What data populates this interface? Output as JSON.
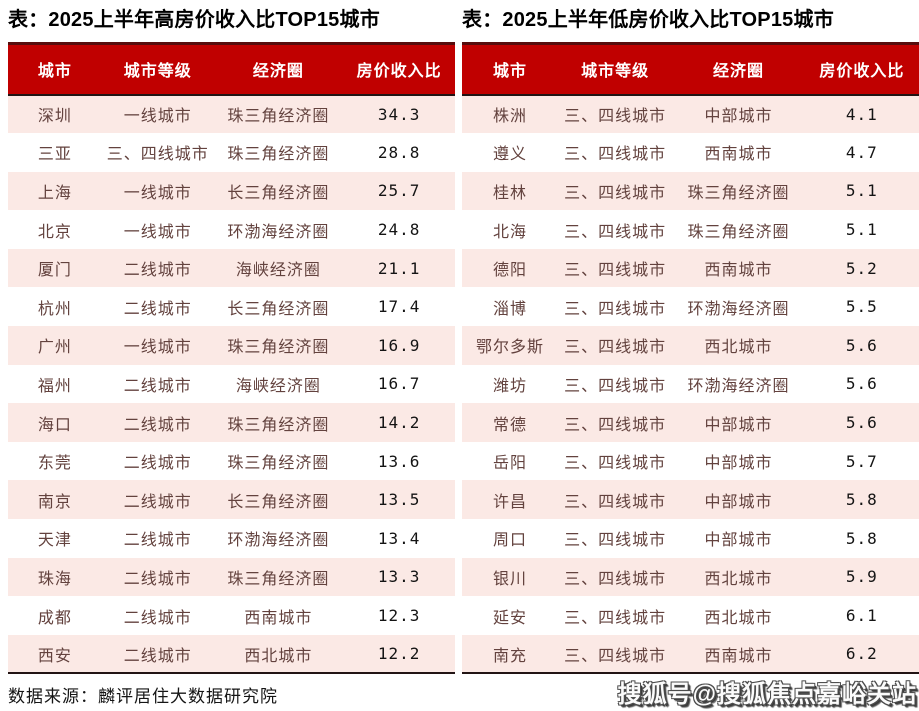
{
  "colors": {
    "header_bg": "#c00000",
    "header_border": "#570d0d",
    "dark_line": "#221414",
    "row_alt_bg": "#fbe9e5",
    "header_text": "#ffffff",
    "cell_text": "#63423e",
    "value_text": "#141414"
  },
  "chart_data": [
    {
      "type": "table",
      "title": "表：2025上半年高房价收入比TOP15城市",
      "columns": [
        "城市",
        "城市等级",
        "经济圈",
        "房价收入比"
      ],
      "rows": [
        [
          "深圳",
          "一线城市",
          "珠三角经济圈",
          "34.3"
        ],
        [
          "三亚",
          "三、四线城市",
          "珠三角经济圈",
          "28.8"
        ],
        [
          "上海",
          "一线城市",
          "长三角经济圈",
          "25.7"
        ],
        [
          "北京",
          "一线城市",
          "环渤海经济圈",
          "24.8"
        ],
        [
          "厦门",
          "二线城市",
          "海峡经济圈",
          "21.1"
        ],
        [
          "杭州",
          "二线城市",
          "长三角经济圈",
          "17.4"
        ],
        [
          "广州",
          "一线城市",
          "珠三角经济圈",
          "16.9"
        ],
        [
          "福州",
          "二线城市",
          "海峡经济圈",
          "16.7"
        ],
        [
          "海口",
          "二线城市",
          "珠三角经济圈",
          "14.2"
        ],
        [
          "东莞",
          "二线城市",
          "珠三角经济圈",
          "13.6"
        ],
        [
          "南京",
          "二线城市",
          "长三角经济圈",
          "13.5"
        ],
        [
          "天津",
          "二线城市",
          "环渤海经济圈",
          "13.4"
        ],
        [
          "珠海",
          "二线城市",
          "珠三角经济圈",
          "13.3"
        ],
        [
          "成都",
          "二线城市",
          "西南城市",
          "12.3"
        ],
        [
          "西安",
          "二线城市",
          "西北城市",
          "12.2"
        ]
      ]
    },
    {
      "type": "table",
      "title": "表：2025上半年低房价收入比TOP15城市",
      "columns": [
        "城市",
        "城市等级",
        "经济圈",
        "房价收入比"
      ],
      "rows": [
        [
          "株洲",
          "三、四线城市",
          "中部城市",
          "4.1"
        ],
        [
          "遵义",
          "三、四线城市",
          "西南城市",
          "4.7"
        ],
        [
          "桂林",
          "三、四线城市",
          "珠三角经济圈",
          "5.1"
        ],
        [
          "北海",
          "三、四线城市",
          "珠三角经济圈",
          "5.1"
        ],
        [
          "德阳",
          "三、四线城市",
          "西南城市",
          "5.2"
        ],
        [
          "淄博",
          "三、四线城市",
          "环渤海经济圈",
          "5.5"
        ],
        [
          "鄂尔多斯",
          "三、四线城市",
          "西北城市",
          "5.6"
        ],
        [
          "潍坊",
          "三、四线城市",
          "环渤海经济圈",
          "5.6"
        ],
        [
          "常德",
          "三、四线城市",
          "中部城市",
          "5.6"
        ],
        [
          "岳阳",
          "三、四线城市",
          "中部城市",
          "5.7"
        ],
        [
          "许昌",
          "三、四线城市",
          "中部城市",
          "5.8"
        ],
        [
          "周口",
          "三、四线城市",
          "中部城市",
          "5.8"
        ],
        [
          "银川",
          "三、四线城市",
          "西北城市",
          "5.9"
        ],
        [
          "延安",
          "三、四线城市",
          "西北城市",
          "6.1"
        ],
        [
          "南充",
          "三、四线城市",
          "西南城市",
          "6.2"
        ]
      ]
    }
  ],
  "footer": {
    "source": "数据来源：麟评居住大数据研究院",
    "watermark": "搜狐号@搜狐焦点嘉峪关站"
  }
}
